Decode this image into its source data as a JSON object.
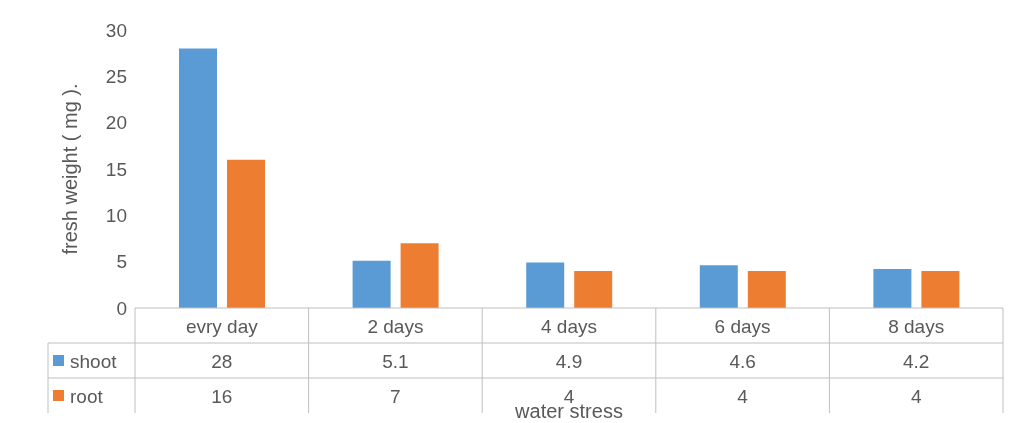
{
  "chart_data": {
    "type": "bar",
    "xlabel": "water stress",
    "ylabel": "fresh weight ( mg ).",
    "categories": [
      "evry day",
      "2 days",
      "4 days",
      "6 days",
      "8 days"
    ],
    "series": [
      {
        "name": "shoot",
        "color": "#5b9bd5",
        "values": [
          28,
          5.1,
          4.9,
          4.6,
          4.2
        ]
      },
      {
        "name": "root",
        "color": "#ed7d31",
        "values": [
          16,
          7,
          4,
          4,
          4
        ]
      }
    ],
    "ylim": [
      0,
      30
    ],
    "yticks": [
      0,
      5,
      10,
      15,
      20,
      25,
      30
    ],
    "data_labels": true,
    "legend": "bottom"
  }
}
